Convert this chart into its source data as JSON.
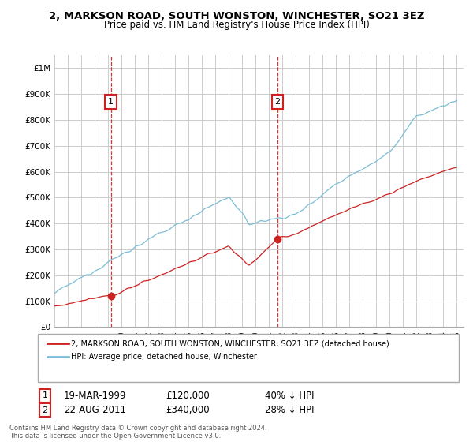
{
  "title": "2, MARKSON ROAD, SOUTH WONSTON, WINCHESTER, SO21 3EZ",
  "subtitle": "Price paid vs. HM Land Registry's House Price Index (HPI)",
  "ylim": [
    0,
    1050000
  ],
  "yticks": [
    0,
    100000,
    200000,
    300000,
    400000,
    500000,
    600000,
    700000,
    800000,
    900000,
    1000000
  ],
  "ytick_labels": [
    "£0",
    "£100K",
    "£200K",
    "£300K",
    "£400K",
    "£500K",
    "£600K",
    "£700K",
    "£800K",
    "£900K",
    "£1M"
  ],
  "sale1_date": "19-MAR-1999",
  "sale1_price": 120000,
  "sale1_year": 1999.21,
  "sale1_hpi_text": "40% ↓ HPI",
  "sale2_date": "22-AUG-2011",
  "sale2_price": 340000,
  "sale2_year": 2011.63,
  "sale2_hpi_text": "28% ↓ HPI",
  "legend_label1": "2, MARKSON ROAD, SOUTH WONSTON, WINCHESTER, SO21 3EZ (detached house)",
  "legend_label2": "HPI: Average price, detached house, Winchester",
  "footer": "Contains HM Land Registry data © Crown copyright and database right 2024.\nThis data is licensed under the Open Government Licence v3.0.",
  "hpi_color": "#7bbdd4",
  "price_color": "#cc2222",
  "vline_color": "#cc2222",
  "background_color": "#ffffff",
  "grid_color": "#cccccc",
  "xlim_start": 1995,
  "xlim_end": 2025.5
}
